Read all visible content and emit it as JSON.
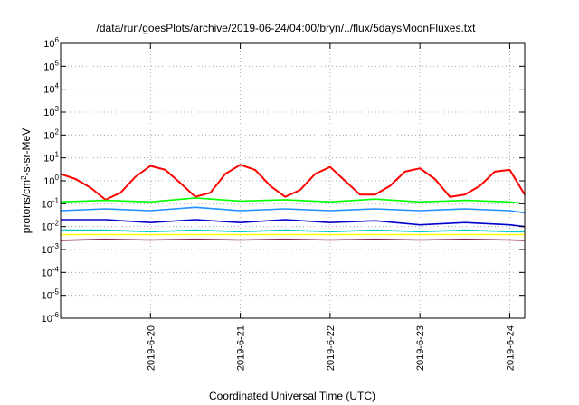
{
  "chart_data": {
    "type": "line",
    "title": "/data/run/goesPlots/archive/2019-06-24/04:00/bryn/../flux/5daysMoonFluxes.txt",
    "xlabel": "Coordinated Universal Time (UTC)",
    "ylabel_base": "protons/cm",
    "ylabel_sup": "2",
    "ylabel_rest": "-s-sr-MeV",
    "y_scale": "log",
    "ylim": [
      1e-06,
      1000000.0
    ],
    "y_ticks": [
      {
        "base": "10",
        "exp": "-6"
      },
      {
        "base": "10",
        "exp": "-5"
      },
      {
        "base": "10",
        "exp": "-4"
      },
      {
        "base": "10",
        "exp": "-3"
      },
      {
        "base": "10",
        "exp": "-2"
      },
      {
        "base": "10",
        "exp": "-1"
      },
      {
        "base": "10",
        "exp": "0"
      },
      {
        "base": "10",
        "exp": "1"
      },
      {
        "base": "10",
        "exp": "2"
      },
      {
        "base": "10",
        "exp": "3"
      },
      {
        "base": "10",
        "exp": "4"
      },
      {
        "base": "10",
        "exp": "5"
      },
      {
        "base": "10",
        "exp": "6"
      }
    ],
    "xlim": [
      "2019-06-19 00:00",
      "2019-06-24 04:00"
    ],
    "x_ticks": [
      "2019-6-20",
      "2019-6-21",
      "2019-6-22",
      "2019-6-23",
      "2019-6-24"
    ],
    "grid": true,
    "legend": "none",
    "series": [
      {
        "color": "#ff0000",
        "x": [
          "2019-06-19 00:00",
          "2019-06-19 04:00",
          "2019-06-19 08:00",
          "2019-06-19 12:00",
          "2019-06-19 16:00",
          "2019-06-19 20:00",
          "2019-06-20 00:00",
          "2019-06-20 04:00",
          "2019-06-20 08:00",
          "2019-06-20 12:00",
          "2019-06-20 16:00",
          "2019-06-20 20:00",
          "2019-06-21 00:00",
          "2019-06-21 04:00",
          "2019-06-21 08:00",
          "2019-06-21 12:00",
          "2019-06-21 16:00",
          "2019-06-21 20:00",
          "2019-06-22 00:00",
          "2019-06-22 04:00",
          "2019-06-22 08:00",
          "2019-06-22 12:00",
          "2019-06-22 16:00",
          "2019-06-22 20:00",
          "2019-06-23 00:00",
          "2019-06-23 04:00",
          "2019-06-23 08:00",
          "2019-06-23 12:00",
          "2019-06-23 16:00",
          "2019-06-23 20:00",
          "2019-06-24 00:00",
          "2019-06-24 04:00"
        ],
        "values": [
          2,
          1.2,
          0.5,
          0.15,
          0.3,
          1.5,
          4.5,
          3,
          0.8,
          0.2,
          0.3,
          2,
          5,
          3,
          0.6,
          0.2,
          0.4,
          2,
          4,
          1,
          0.25,
          0.25,
          0.6,
          2.5,
          3.5,
          1.2,
          0.2,
          0.25,
          0.6,
          2.5,
          3,
          0.25
        ]
      },
      {
        "color": "#00ff00",
        "x": [
          "2019-06-19 00:00",
          "2019-06-19 12:00",
          "2019-06-20 00:00",
          "2019-06-20 12:00",
          "2019-06-21 00:00",
          "2019-06-21 12:00",
          "2019-06-22 00:00",
          "2019-06-22 12:00",
          "2019-06-23 00:00",
          "2019-06-23 12:00",
          "2019-06-24 00:00",
          "2019-06-24 04:00"
        ],
        "values": [
          0.12,
          0.14,
          0.12,
          0.18,
          0.13,
          0.15,
          0.12,
          0.16,
          0.12,
          0.14,
          0.12,
          0.1
        ]
      },
      {
        "color": "#1e90ff",
        "x": [
          "2019-06-19 00:00",
          "2019-06-19 12:00",
          "2019-06-20 00:00",
          "2019-06-20 12:00",
          "2019-06-21 00:00",
          "2019-06-21 12:00",
          "2019-06-22 00:00",
          "2019-06-22 12:00",
          "2019-06-23 00:00",
          "2019-06-23 12:00",
          "2019-06-24 00:00",
          "2019-06-24 04:00"
        ],
        "values": [
          0.05,
          0.06,
          0.05,
          0.07,
          0.05,
          0.06,
          0.05,
          0.06,
          0.05,
          0.06,
          0.05,
          0.04
        ]
      },
      {
        "color": "#0000cd",
        "x": [
          "2019-06-19 00:00",
          "2019-06-19 12:00",
          "2019-06-20 00:00",
          "2019-06-20 12:00",
          "2019-06-21 00:00",
          "2019-06-21 12:00",
          "2019-06-22 00:00",
          "2019-06-22 12:00",
          "2019-06-23 00:00",
          "2019-06-23 12:00",
          "2019-06-24 00:00",
          "2019-06-24 04:00"
        ],
        "values": [
          0.02,
          0.02,
          0.015,
          0.02,
          0.015,
          0.02,
          0.015,
          0.018,
          0.012,
          0.015,
          0.012,
          0.01
        ]
      },
      {
        "color": "#00ced1",
        "x": [
          "2019-06-19 00:00",
          "2019-06-19 12:00",
          "2019-06-20 00:00",
          "2019-06-20 12:00",
          "2019-06-21 00:00",
          "2019-06-21 12:00",
          "2019-06-22 00:00",
          "2019-06-22 12:00",
          "2019-06-23 00:00",
          "2019-06-23 12:00",
          "2019-06-24 00:00",
          "2019-06-24 04:00"
        ],
        "values": [
          0.007,
          0.007,
          0.006,
          0.007,
          0.006,
          0.007,
          0.006,
          0.007,
          0.006,
          0.007,
          0.006,
          0.006
        ]
      },
      {
        "color": "#ffff00",
        "x": [
          "2019-06-19 00:00",
          "2019-06-19 12:00",
          "2019-06-20 00:00",
          "2019-06-20 12:00",
          "2019-06-21 00:00",
          "2019-06-21 12:00",
          "2019-06-22 00:00",
          "2019-06-22 12:00",
          "2019-06-23 00:00",
          "2019-06-23 12:00",
          "2019-06-24 00:00",
          "2019-06-24 04:00"
        ],
        "values": [
          0.0045,
          0.0045,
          0.0045,
          0.0045,
          0.0045,
          0.0045,
          0.0045,
          0.0045,
          0.0045,
          0.0045,
          0.0045,
          0.0045
        ]
      },
      {
        "color": "#8b2252",
        "x": [
          "2019-06-19 00:00",
          "2019-06-19 12:00",
          "2019-06-20 00:00",
          "2019-06-20 12:00",
          "2019-06-21 00:00",
          "2019-06-21 12:00",
          "2019-06-22 00:00",
          "2019-06-22 12:00",
          "2019-06-23 00:00",
          "2019-06-23 12:00",
          "2019-06-24 00:00",
          "2019-06-24 04:00"
        ],
        "values": [
          0.0025,
          0.0028,
          0.0026,
          0.0028,
          0.0026,
          0.0028,
          0.0026,
          0.0028,
          0.0026,
          0.0028,
          0.0026,
          0.0025
        ]
      }
    ]
  }
}
